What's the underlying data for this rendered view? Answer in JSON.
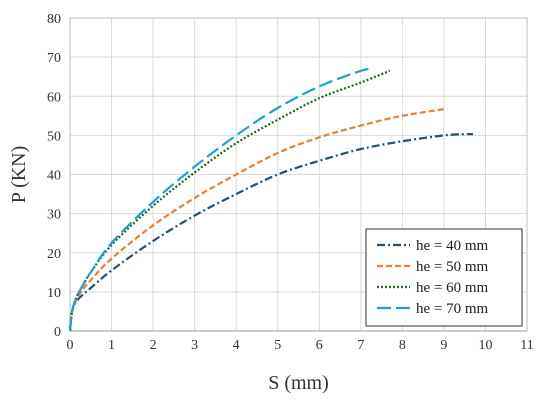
{
  "chart_data": {
    "type": "line",
    "xlabel": "S (mm)",
    "ylabel": "P (KN)",
    "xlim": [
      0,
      11
    ],
    "ylim": [
      0,
      80
    ],
    "xticks": [
      "0",
      "1",
      "2",
      "3",
      "4",
      "5",
      "6",
      "7",
      "8",
      "9",
      "10",
      "11"
    ],
    "yticks": [
      "0",
      "10",
      "20",
      "30",
      "40",
      "50",
      "60",
      "70",
      "80"
    ],
    "grid": true,
    "legend_position": "bottom-right",
    "series": [
      {
        "name": "he = 40 mm",
        "color": "#1f4e79",
        "dash": "dashdot",
        "x": [
          0,
          0.05,
          0.15,
          0.3,
          0.5,
          1.0,
          2.0,
          3.0,
          4.0,
          5.0,
          6.0,
          7.0,
          8.0,
          9.0,
          9.5,
          9.7
        ],
        "y": [
          0,
          5,
          7.5,
          9.2,
          11,
          15.5,
          23,
          29.5,
          35,
          40,
          43.5,
          46.5,
          48.5,
          50,
          50.3,
          50.3
        ]
      },
      {
        "name": "he = 50 mm",
        "color": "#ed7d31",
        "dash": "dash",
        "x": [
          0,
          0.05,
          0.15,
          0.3,
          0.5,
          1.0,
          2.0,
          3.0,
          4.0,
          5.0,
          6.0,
          7.0,
          8.0,
          9.0
        ],
        "y": [
          0,
          5,
          8,
          10.5,
          13,
          18.5,
          27,
          34,
          40,
          45.5,
          49.5,
          52.5,
          55,
          56.7
        ]
      },
      {
        "name": "he = 60 mm",
        "color": "#1a6b1a",
        "dash": "dot",
        "x": [
          0,
          0.05,
          0.15,
          0.3,
          0.5,
          1.0,
          2.0,
          3.0,
          4.0,
          5.0,
          6.0,
          7.0,
          7.7
        ],
        "y": [
          0,
          5,
          8.5,
          11.5,
          15,
          22,
          32,
          40.5,
          48,
          54,
          59.5,
          63.5,
          66.5
        ]
      },
      {
        "name": "he = 70 mm",
        "color": "#1ba1d6",
        "dash": "longdash",
        "x": [
          0,
          0.05,
          0.15,
          0.3,
          0.5,
          1.0,
          2.0,
          3.0,
          4.0,
          5.0,
          6.0,
          7.0,
          7.3
        ],
        "y": [
          0,
          5,
          8.5,
          11.5,
          15,
          22.5,
          33,
          42,
          50,
          57,
          62.5,
          66.5,
          67
        ]
      }
    ]
  }
}
